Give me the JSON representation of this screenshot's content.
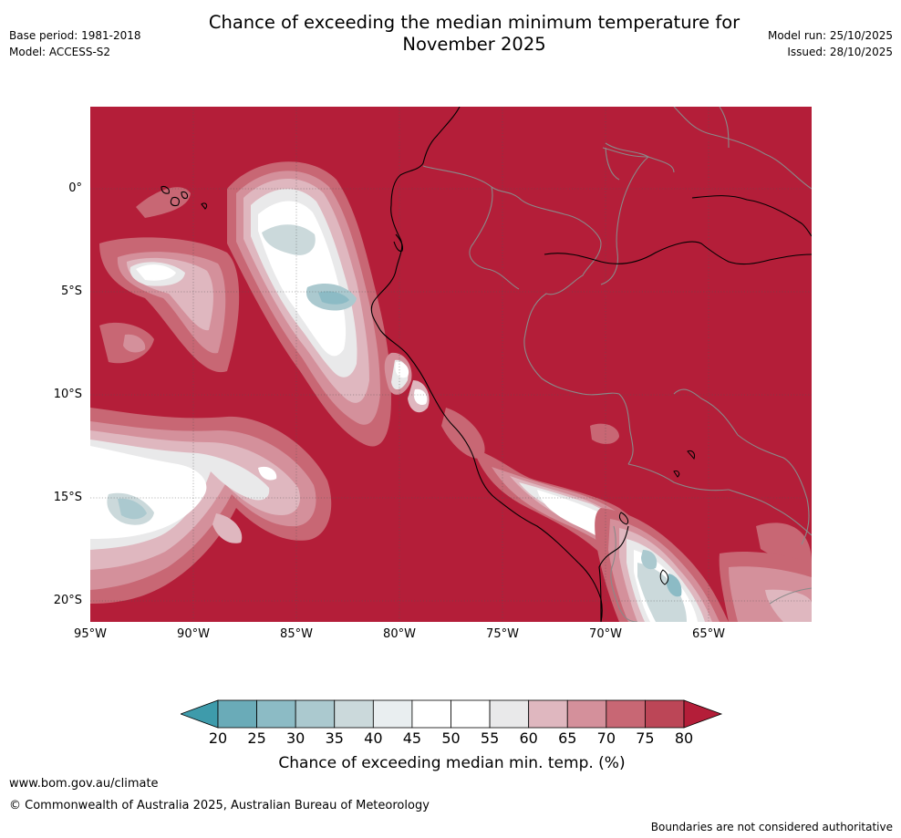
{
  "header": {
    "title_line1": "Chance of exceeding the median minimum temperature for",
    "title_line2": "November 2025",
    "base_period": "Base period: 1981-2018",
    "model": "Model: ACCESS-S2",
    "model_run": "Model run: 25/10/2025",
    "issued": "Issued: 28/10/2025"
  },
  "map": {
    "lat_labels": [
      "0°",
      "5°S",
      "10°S",
      "15°S",
      "20°S"
    ],
    "lon_labels": [
      "95°W",
      "90°W",
      "85°W",
      "80°W",
      "75°W",
      "70°W",
      "65°W"
    ]
  },
  "legend": {
    "title": "Chance of exceeding median min. temp. (%)",
    "ticks": [
      "20",
      "25",
      "30",
      "35",
      "40",
      "45",
      "50",
      "55",
      "60",
      "65",
      "70",
      "75",
      "80"
    ],
    "colors": [
      "#3e9bab",
      "#6aabb8",
      "#8cbbc5",
      "#abc9cf",
      "#cbd9db",
      "#e9eef0",
      "#ffffff",
      "#ffffff",
      "#e9e9ea",
      "#dfb7bf",
      "#d4909b",
      "#c86774",
      "#bc4657",
      "#b41e39"
    ]
  },
  "footer": {
    "url": "www.bom.gov.au/climate",
    "copyright": "© Commonwealth of Australia 2025, Australian Bureau of Meteorology",
    "note": "Boundaries are not considered authoritative"
  }
}
